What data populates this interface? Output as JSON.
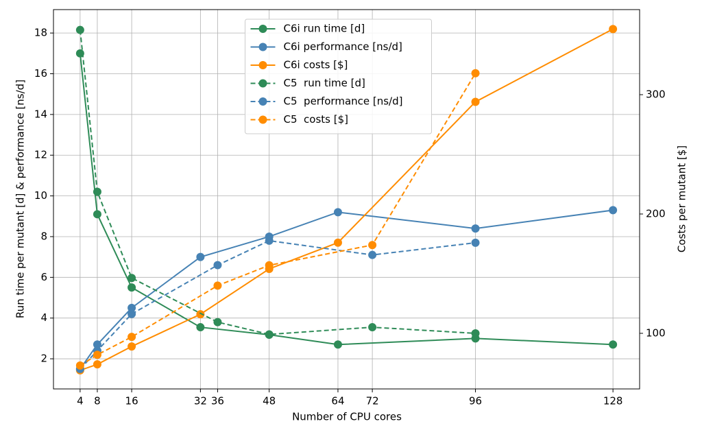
{
  "chart_data": {
    "type": "line",
    "xlabel": "Number of CPU cores",
    "ylabel": "Run time per mutant [d] & performance [ns/d]",
    "y2label": "Costs per mutant [$]",
    "xlim": [
      -2.2,
      134.2
    ],
    "xticks": [
      4,
      8,
      16,
      32,
      36,
      48,
      64,
      72,
      96,
      128
    ],
    "ylim": [
      0.52,
      19.15
    ],
    "yticks": [
      2,
      4,
      6,
      8,
      10,
      12,
      14,
      16,
      18
    ],
    "y2lim": [
      53.4,
      371.3
    ],
    "y2ticks": [
      100,
      200,
      300
    ],
    "grid": true,
    "legend": "upper center",
    "series": [
      {
        "name": "C6i run time [d]",
        "color": "#2e8b57",
        "linestyle": "solid",
        "x": [
          4,
          8,
          16,
          32,
          48,
          64,
          96,
          128
        ],
        "values": [
          17.0,
          9.1,
          5.5,
          3.55,
          3.18,
          2.7,
          3.0,
          2.7
        ]
      },
      {
        "name": "C6i performance [ns/d]",
        "color": "#4682b4",
        "linestyle": "solid",
        "x": [
          4,
          8,
          16,
          32,
          48,
          64,
          96,
          128
        ],
        "values": [
          1.5,
          2.7,
          4.5,
          7.0,
          8.0,
          9.2,
          8.4,
          9.3
        ]
      },
      {
        "name": "C6i costs [$]",
        "color": "#ff8c00",
        "linestyle": "solid",
        "axis": "y2",
        "x": [
          4,
          8,
          16,
          32,
          48,
          64,
          96,
          128
        ],
        "values": [
          69,
          74,
          89,
          116,
          154,
          176,
          294,
          355
        ]
      },
      {
        "name": "C5  run time [d]",
        "color": "#2e8b57",
        "linestyle": "dashed",
        "x": [
          4,
          8,
          16,
          36,
          48,
          72,
          96
        ],
        "values": [
          18.15,
          10.2,
          5.97,
          3.8,
          3.2,
          3.55,
          3.25
        ]
      },
      {
        "name": "C5  performance [ns/d]",
        "color": "#4682b4",
        "linestyle": "dashed",
        "x": [
          4,
          8,
          16,
          36,
          48,
          72,
          96
        ],
        "values": [
          1.5,
          2.4,
          4.2,
          6.6,
          7.8,
          7.1,
          7.7
        ]
      },
      {
        "name": "C5  costs [$]",
        "color": "#ff8c00",
        "linestyle": "dashed",
        "axis": "y2",
        "x": [
          4,
          8,
          16,
          36,
          48,
          72,
          96
        ],
        "values": [
          73,
          82,
          97,
          140,
          157,
          174,
          318
        ]
      }
    ]
  }
}
